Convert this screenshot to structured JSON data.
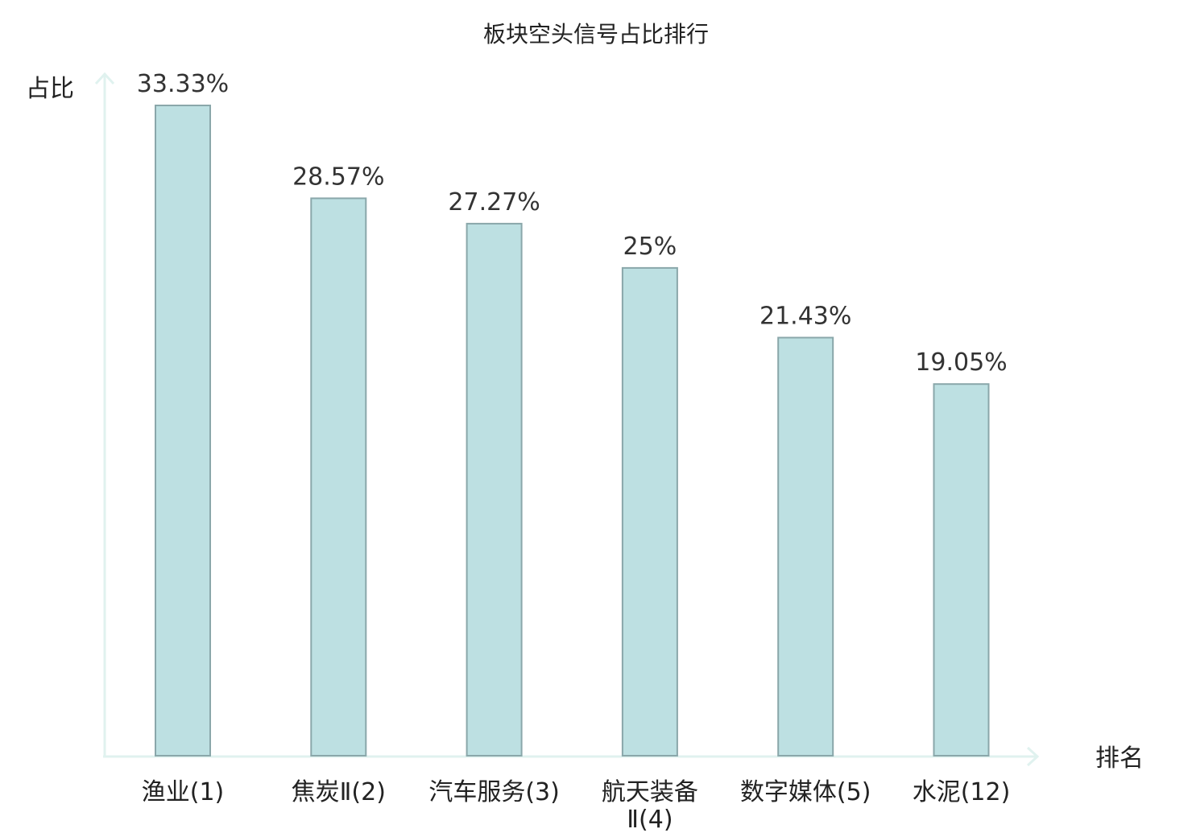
{
  "chart_data": {
    "type": "bar",
    "title": "板块空头信号占比排行",
    "ylabel": "占比",
    "xlabel": "排名",
    "categories": [
      [
        "渔业(1)"
      ],
      [
        "焦炭Ⅱ(2)"
      ],
      [
        "汽车服务(3)"
      ],
      [
        "航天装备",
        "Ⅱ(4)"
      ],
      [
        "数字媒体(5)"
      ],
      [
        "水泥(12)"
      ]
    ],
    "values": [
      33.33,
      28.57,
      27.27,
      25,
      21.43,
      19.05
    ],
    "value_labels": [
      "33.33%",
      "28.57%",
      "27.27%",
      "25%",
      "21.43%",
      "19.05%"
    ],
    "highlight_index": 5,
    "ylim": [
      0,
      33.33
    ],
    "grid": false,
    "colors": {
      "bar_fill": "#bde0e2",
      "bar_stroke": "#8aa7aa",
      "axis": "#e0f2ef",
      "text": "#222222",
      "value_text": "#333333",
      "highlight_text": "#e00000"
    }
  }
}
